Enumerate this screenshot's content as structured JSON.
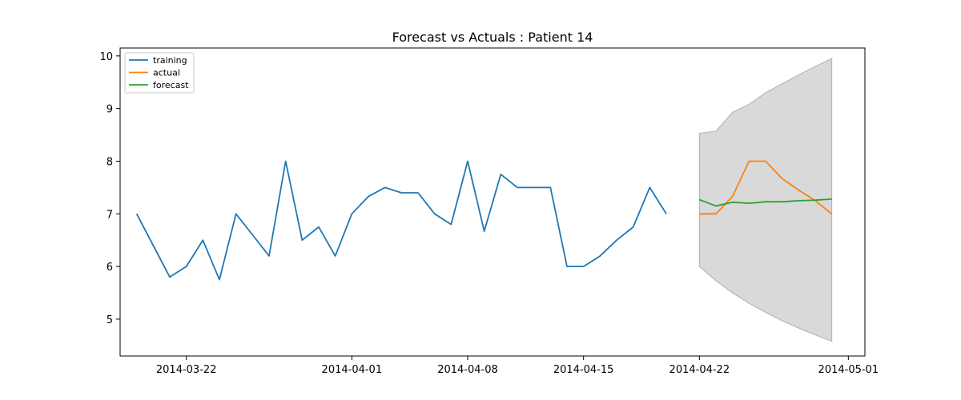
{
  "chart_data": {
    "type": "line",
    "title": "Forecast vs Actuals : Patient 14",
    "xlabel": "",
    "ylabel": "",
    "xlim": [
      "2014-03-18",
      "2014-05-02"
    ],
    "ylim": [
      4.3,
      10.15
    ],
    "grid": false,
    "legend_position": "top-left",
    "x_ticks": [
      "2014-03-22",
      "2014-04-01",
      "2014-04-08",
      "2014-04-15",
      "2014-04-22",
      "2014-05-01"
    ],
    "y_ticks": [
      5,
      6,
      7,
      8,
      9,
      10
    ],
    "series": [
      {
        "name": "training",
        "color": "#1f77b4",
        "x": [
          "2014-03-19",
          "2014-03-20",
          "2014-03-21",
          "2014-03-22",
          "2014-03-23",
          "2014-03-24",
          "2014-03-25",
          "2014-03-26",
          "2014-03-27",
          "2014-03-28",
          "2014-03-29",
          "2014-03-30",
          "2014-03-31",
          "2014-04-01",
          "2014-04-02",
          "2014-04-03",
          "2014-04-04",
          "2014-04-05",
          "2014-04-06",
          "2014-04-07",
          "2014-04-08",
          "2014-04-09",
          "2014-04-10",
          "2014-04-11",
          "2014-04-12",
          "2014-04-13",
          "2014-04-14",
          "2014-04-15",
          "2014-04-16",
          "2014-04-17",
          "2014-04-18",
          "2014-04-19",
          "2014-04-20"
        ],
        "values": [
          7.0,
          6.4,
          5.8,
          6.0,
          6.5,
          5.75,
          7.0,
          6.6,
          6.2,
          8.0,
          6.5,
          6.75,
          6.2,
          7.0,
          7.33,
          7.5,
          7.4,
          7.4,
          7.0,
          6.8,
          8.0,
          6.67,
          7.75,
          7.5,
          7.5,
          7.5,
          6.0,
          6.0,
          6.2,
          6.5,
          6.75,
          7.5,
          7.0
        ]
      },
      {
        "name": "actual",
        "color": "#ff7f0e",
        "x": [
          "2014-04-22",
          "2014-04-23",
          "2014-04-24",
          "2014-04-25",
          "2014-04-26",
          "2014-04-27",
          "2014-04-28",
          "2014-04-29",
          "2014-04-30"
        ],
        "values": [
          7.0,
          7.0,
          7.33,
          8.0,
          8.0,
          7.67,
          7.45,
          7.25,
          7.0
        ]
      },
      {
        "name": "forecast",
        "color": "#2ca02c",
        "x": [
          "2014-04-22",
          "2014-04-23",
          "2014-04-24",
          "2014-04-25",
          "2014-04-26",
          "2014-04-27",
          "2014-04-28",
          "2014-04-29",
          "2014-04-30"
        ],
        "values": [
          7.27,
          7.15,
          7.22,
          7.2,
          7.23,
          7.23,
          7.25,
          7.26,
          7.28
        ]
      }
    ],
    "confidence_interval": {
      "color": "#d9d9d9",
      "edge_color": "#b0b0b0",
      "x": [
        "2014-04-22",
        "2014-04-23",
        "2014-04-24",
        "2014-04-25",
        "2014-04-26",
        "2014-04-27",
        "2014-04-28",
        "2014-04-29",
        "2014-04-30"
      ],
      "upper": [
        8.53,
        8.57,
        8.93,
        9.08,
        9.3,
        9.47,
        9.64,
        9.8,
        9.95
      ],
      "lower": [
        6.0,
        5.73,
        5.5,
        5.3,
        5.13,
        4.97,
        4.83,
        4.7,
        4.58
      ]
    }
  }
}
